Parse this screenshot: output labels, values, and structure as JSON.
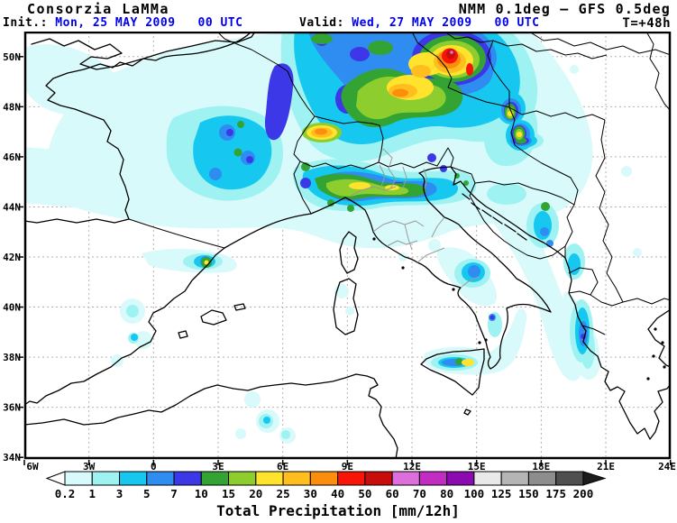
{
  "header": {
    "brand": "Consorzia LaMMa",
    "model": "NMM 0.1deg – GFS 0.5deg",
    "init_label": "Init.:",
    "init_value": " Mon, 25 MAY 2009   00 UTC",
    "valid_label": "Valid:",
    "valid_value": " Wed, 27 MAY 2009   00 UTC",
    "lead_time": "T=+48h",
    "accent_color": "#0000f0"
  },
  "map": {
    "lat_labels": [
      "50N",
      "48N",
      "46N",
      "44N",
      "42N",
      "40N",
      "38N",
      "36N",
      "34N"
    ],
    "lon_labels": [
      "6W",
      "3W",
      "0",
      "3E",
      "6E",
      "9E",
      "12E",
      "15E",
      "18E",
      "21E",
      "24E"
    ],
    "grid_color": "#b2b2b2",
    "coast_color": "#000000",
    "region_border_color": "#9a9a9a",
    "sea_land_color": "#ffffff"
  },
  "colorbar": {
    "title": "Total Precipitation [mm/12h]",
    "values": [
      "0.2",
      "1",
      "3",
      "5",
      "7",
      "10",
      "15",
      "20",
      "25",
      "30",
      "40",
      "50",
      "60",
      "70",
      "80",
      "100",
      "125",
      "150",
      "175",
      "200"
    ],
    "colors": [
      "#d9fafa",
      "#9ef2f2",
      "#16c8f0",
      "#2f8cf0",
      "#3c38e8",
      "#33a433",
      "#8ecd2e",
      "#ffe32d",
      "#ffbe1e",
      "#fb8f0d",
      "#f91408",
      "#c80d0b",
      "#dc6fdc",
      "#c32cc3",
      "#8c0bb0",
      "#e9e9e9",
      "#b5b5b5",
      "#8d8d8d",
      "#4f4f4f"
    ],
    "underflow_color": "#ffffff",
    "overflow_color": "#1c1c1c"
  },
  "chart_data": {
    "type": "heatmap",
    "title": "Total Precipitation [mm/12h]",
    "units": "mm/12h",
    "legend_values": [
      0.2,
      1,
      3,
      5,
      7,
      10,
      15,
      20,
      25,
      30,
      40,
      50,
      60,
      70,
      80,
      100,
      125,
      150,
      175,
      200
    ],
    "lat_axis": [
      "34N",
      "36N",
      "38N",
      "40N",
      "42N",
      "44N",
      "46N",
      "48N",
      "50N"
    ],
    "lon_axis": [
      "6W",
      "3W",
      "0",
      "3E",
      "6E",
      "9E",
      "12E",
      "15E",
      "18E",
      "21E",
      "24E"
    ],
    "maxima": [
      {
        "area": "Czech Republic / SE Germany border",
        "max_mm": "50-70"
      },
      {
        "area": "S Germany / Alps diagonal band",
        "max_mm": "30-40"
      },
      {
        "area": "Switzerland plateau",
        "max_mm": "30"
      },
      {
        "area": "E Austria / W Hungary cells",
        "max_mm": "20-25"
      },
      {
        "area": "Central France",
        "max_mm": "10-15"
      },
      {
        "area": "NE Spain (Catalonia / E Pyrenees)",
        "max_mm": "15-20"
      },
      {
        "area": "NE Sicily",
        "max_mm": "20-25"
      },
      {
        "area": "Dinaric Alps / Albania band",
        "max_mm": "5-10"
      },
      {
        "area": "Puglia / S Adriatic",
        "max_mm": "5-7"
      }
    ]
  }
}
